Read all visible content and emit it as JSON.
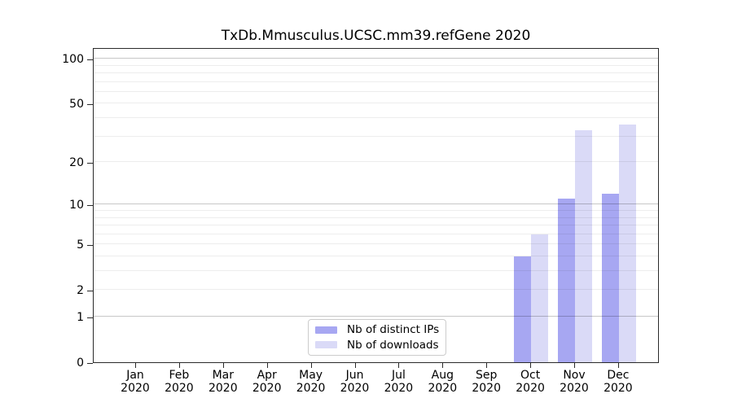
{
  "chart_data": {
    "type": "bar",
    "title": "TxDb.Mmusculus.UCSC.mm39.refGene 2020",
    "categories": [
      "Jan 2020",
      "Feb 2020",
      "Mar 2020",
      "Apr 2020",
      "May 2020",
      "Jun 2020",
      "Jul 2020",
      "Aug 2020",
      "Sep 2020",
      "Oct 2020",
      "Nov 2020",
      "Dec 2020"
    ],
    "series": [
      {
        "name": "Nb of distinct IPs",
        "color": "#a7a7f2",
        "values": [
          0,
          0,
          0,
          0,
          0,
          0,
          0,
          0,
          0,
          4,
          11,
          12
        ]
      },
      {
        "name": "Nb of downloads",
        "color": "#dadaf7",
        "values": [
          0,
          0,
          0,
          0,
          0,
          0,
          0,
          0,
          0,
          6,
          33,
          36
        ]
      }
    ],
    "xlabel": "",
    "ylabel": "",
    "yscale": "log1p",
    "yticks": [
      0,
      1,
      2,
      5,
      10,
      20,
      50,
      100
    ],
    "ylim": [
      0,
      118
    ],
    "grid": true,
    "legend_position": "bottom-center"
  }
}
